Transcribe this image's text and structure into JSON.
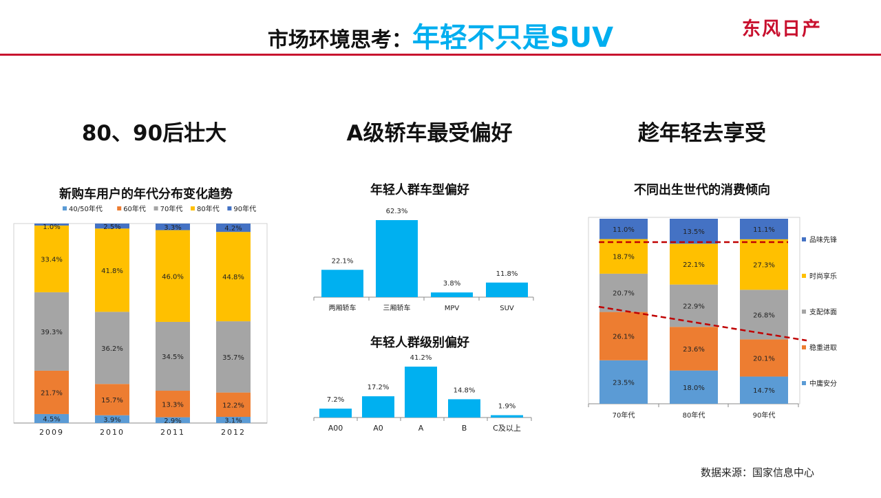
{
  "header": {
    "title_prefix": "市场环境思考：",
    "title_accent": "年轻不只是SUV",
    "logo": "东风日产"
  },
  "columns": {
    "col1": "80、90后壮大",
    "col2": "A级轿车最受偏好",
    "col3": "趁年轻去享受"
  },
  "source": "数据来源：国家信息中心",
  "colors": {
    "accent": "#00aeef",
    "brand": "#c8102e"
  },
  "chart_data": [
    {
      "type": "bar",
      "stacked": true,
      "title": "新购车用户的年代分布变化趋势",
      "categories": [
        "2009",
        "2010",
        "2011",
        "2012"
      ],
      "legend_position": "top",
      "series": [
        {
          "name": "40/50年代",
          "color": "#5b9bd5",
          "values": [
            4.5,
            3.9,
            2.9,
            3.1
          ],
          "labels": [
            "4.5%",
            "3.9%",
            "2.9%",
            "3.1%"
          ]
        },
        {
          "name": "60年代",
          "color": "#ed7d31",
          "values": [
            21.7,
            15.7,
            13.3,
            12.2
          ],
          "labels": [
            "21.7%",
            "15.7%",
            "13.3%",
            "12.2%"
          ]
        },
        {
          "name": "70年代",
          "color": "#a5a5a5",
          "values": [
            39.3,
            36.2,
            34.5,
            35.7
          ],
          "labels": [
            "39.3%",
            "36.2%",
            "34.5%",
            "35.7%"
          ]
        },
        {
          "name": "80年代",
          "color": "#ffc000",
          "values": [
            33.4,
            41.8,
            46.0,
            44.8
          ],
          "labels": [
            "33.4%",
            "41.8%",
            "46.0%",
            "44.8%"
          ]
        },
        {
          "name": "90年代",
          "color": "#4472c4",
          "values": [
            1.0,
            2.5,
            3.3,
            4.2
          ],
          "labels": [
            "1.0%",
            "2.5%",
            "3.3%",
            "4.2%"
          ]
        }
      ]
    },
    {
      "type": "bar",
      "title": "年轻人群车型偏好",
      "categories": [
        "两厢轿车",
        "三厢轿车",
        "MPV",
        "SUV"
      ],
      "values": [
        22.1,
        62.3,
        3.8,
        11.8
      ],
      "labels": [
        "22.1%",
        "62.3%",
        "3.8%",
        "11.8%"
      ],
      "color": "#00b0f0"
    },
    {
      "type": "bar",
      "title": "年轻人群级别偏好",
      "categories": [
        "A00",
        "A0",
        "A",
        "B",
        "C及以上"
      ],
      "values": [
        7.2,
        17.2,
        41.2,
        14.8,
        1.9
      ],
      "labels": [
        "7.2%",
        "17.2%",
        "41.2%",
        "14.8%",
        "1.9%"
      ],
      "color": "#00b0f0"
    },
    {
      "type": "bar",
      "stacked": true,
      "title": "不同出生世代的消费倾向",
      "categories": [
        "70年代",
        "80年代",
        "90年代"
      ],
      "legend_position": "right",
      "series": [
        {
          "name": "中庸安分",
          "color": "#5b9bd5",
          "values": [
            23.5,
            18.0,
            14.7
          ],
          "labels": [
            "23.5%",
            "18.0%",
            "14.7%"
          ]
        },
        {
          "name": "稳重进取",
          "color": "#ed7d31",
          "values": [
            26.1,
            23.6,
            20.1
          ],
          "labels": [
            "26.1%",
            "23.6%",
            "20.1%"
          ]
        },
        {
          "name": "支配体面",
          "color": "#a5a5a5",
          "values": [
            20.7,
            22.9,
            26.8
          ],
          "labels": [
            "20.7%",
            "22.9%",
            "26.8%"
          ]
        },
        {
          "name": "时尚享乐",
          "color": "#ffc000",
          "values": [
            18.7,
            22.1,
            27.3
          ],
          "labels": [
            "18.7%",
            "22.1%",
            "27.3%"
          ]
        },
        {
          "name": "品味先锋",
          "color": "#4472c4",
          "values": [
            11.0,
            13.5,
            11.1
          ],
          "labels": [
            "11.0%",
            "13.5%",
            "11.1%"
          ]
        }
      ]
    }
  ]
}
